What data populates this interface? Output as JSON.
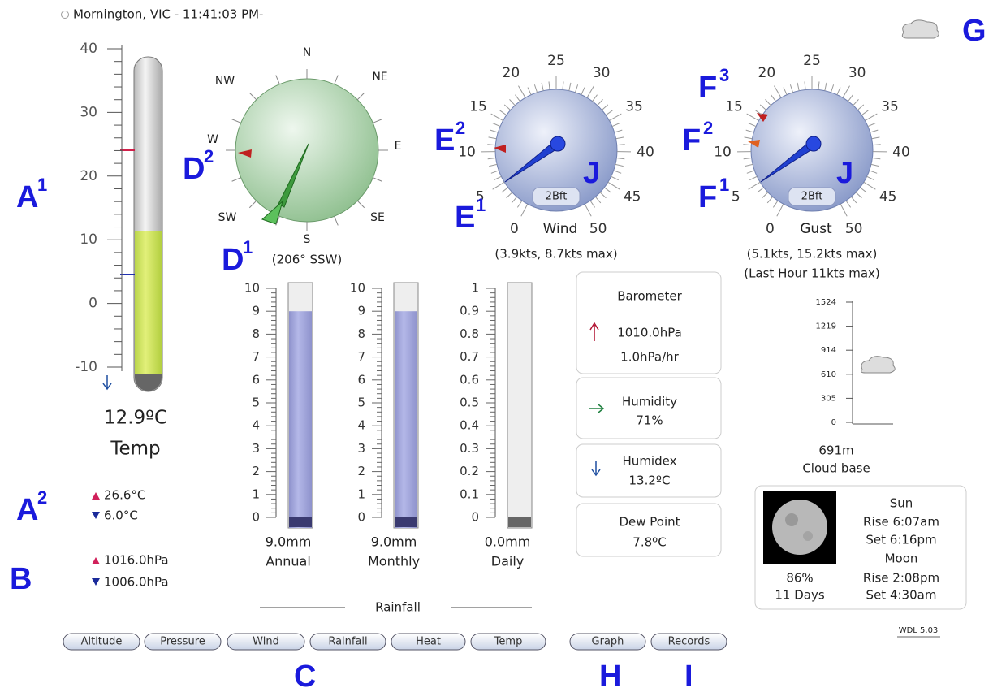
{
  "header": {
    "location": "Mornington, VIC - 11:41:03 PM-"
  },
  "thermometer": {
    "ticks": [
      "40",
      "30",
      "20",
      "10",
      "0",
      "-10"
    ],
    "value": "12.9ºC",
    "label": "Temp",
    "high": "26.6°C",
    "low": "6.0°C"
  },
  "pressure_range": {
    "high": "1016.0hPa",
    "low": "1006.0hPa"
  },
  "compass": {
    "directions": [
      "N",
      "NE",
      "E",
      "SE",
      "S",
      "SW",
      "W",
      "NW"
    ],
    "reading": "(206° SSW)"
  },
  "wind": {
    "ticks": [
      "0",
      "5",
      "10",
      "15",
      "20",
      "25",
      "30",
      "35",
      "40",
      "45",
      "50"
    ],
    "badge": "2Bft",
    "label": "Wind",
    "reading": "(3.9kts, 8.7kts max)"
  },
  "gust": {
    "ticks": [
      "0",
      "5",
      "10",
      "15",
      "20",
      "25",
      "30",
      "35",
      "40",
      "45",
      "50"
    ],
    "badge": "2Bft",
    "label": "Gust",
    "reading": "(5.1kts, 15.2kts max)",
    "reading_last_hour": "(Last Hour 11kts max)"
  },
  "rainfall": {
    "title": "Rainfall",
    "gauges": [
      {
        "ticks": [
          "10",
          "9",
          "8",
          "7",
          "6",
          "5",
          "4",
          "3",
          "2",
          "1",
          "0"
        ],
        "value": "9.0mm",
        "label": "Annual"
      },
      {
        "ticks": [
          "10",
          "9",
          "8",
          "7",
          "6",
          "5",
          "4",
          "3",
          "2",
          "1",
          "0"
        ],
        "value": "9.0mm",
        "label": "Monthly"
      },
      {
        "ticks": [
          "1",
          "0.9",
          "0.8",
          "0.7",
          "0.6",
          "0.5",
          "0.4",
          "0.3",
          "0.2",
          "0.1",
          "0"
        ],
        "value": "0.0mm",
        "label": "Daily"
      }
    ]
  },
  "cards": [
    {
      "title": "Barometer",
      "lines": [
        "1010.0hPa",
        "1.0hPa/hr"
      ]
    },
    {
      "title": "Humidity",
      "lines": [
        "71%"
      ]
    },
    {
      "title": "Humidex",
      "lines": [
        "13.2ºC"
      ]
    },
    {
      "title": "Dew Point",
      "lines": [
        "7.8ºC"
      ]
    }
  ],
  "cloud_base": {
    "ticks": [
      "1524",
      "1219",
      "914",
      "610",
      "305",
      "0"
    ],
    "value": "691m",
    "label": "Cloud base"
  },
  "astro": {
    "moon_percent": "86%",
    "moon_age": "11 Days",
    "lines": [
      "Sun",
      "Rise 6:07am",
      "Set 6:16pm",
      "Moon",
      "Rise 2:08pm",
      "Set 4:30am"
    ]
  },
  "buttons": [
    "Altitude",
    "Pressure",
    "Wind",
    "Rainfall",
    "Heat",
    "Temp",
    "Graph",
    "Records"
  ],
  "version": "WDL 5.03",
  "annotations": [
    {
      "letter": "A",
      "sup": "1"
    },
    {
      "letter": "A",
      "sup": "2"
    },
    {
      "letter": "B"
    },
    {
      "letter": "C"
    },
    {
      "letter": "D",
      "sup": "1"
    },
    {
      "letter": "D",
      "sup": "2"
    },
    {
      "letter": "E",
      "sup": "1"
    },
    {
      "letter": "E",
      "sup": "2"
    },
    {
      "letter": "F",
      "sup": "1"
    },
    {
      "letter": "F",
      "sup": "2"
    },
    {
      "letter": "F",
      "sup": "3"
    },
    {
      "letter": "G"
    },
    {
      "letter": "H"
    },
    {
      "letter": "I"
    },
    {
      "letter": "J"
    },
    {
      "letter": "J"
    }
  ]
}
